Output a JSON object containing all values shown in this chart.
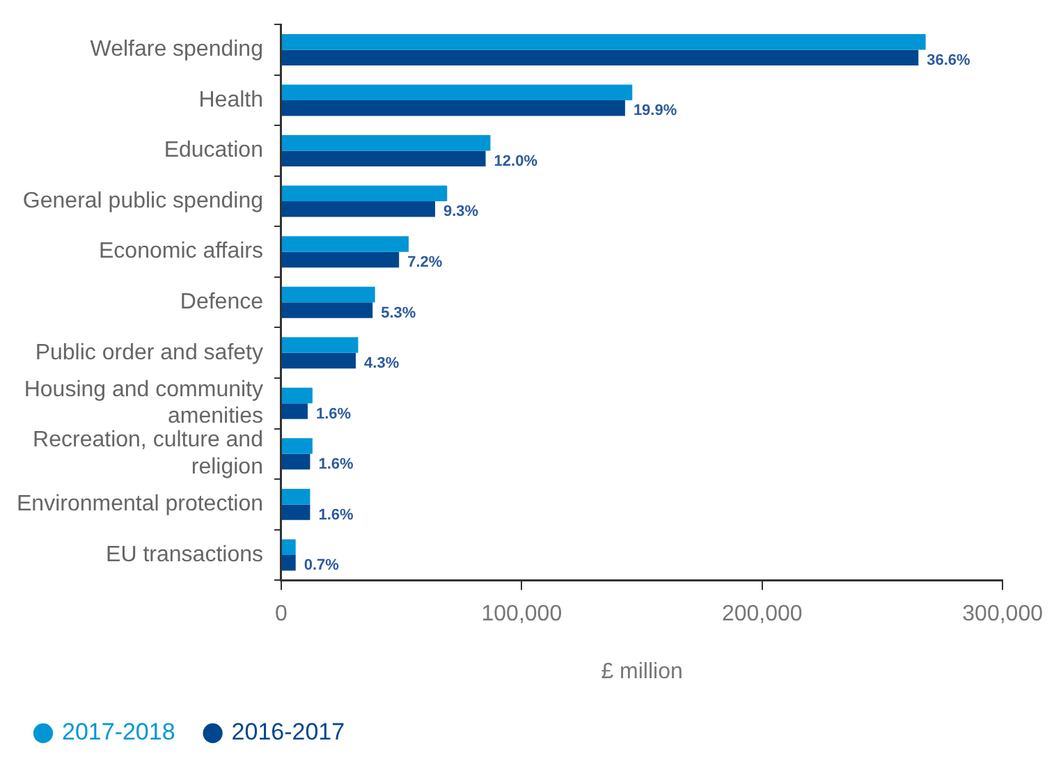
{
  "chart_data": {
    "type": "bar",
    "orientation": "horizontal",
    "categories": [
      "Welfare spending",
      "Health",
      "Education",
      "General public spending",
      "Economic affairs",
      "Defence",
      "Public order and safety",
      "Housing and community amenities",
      "Recreation, culture and religion",
      "Environmental protection",
      "EU transactions"
    ],
    "series": [
      {
        "name": "2017-2018",
        "color": "#0096d6",
        "values": [
          268000,
          146000,
          87000,
          69000,
          53000,
          39000,
          32000,
          13000,
          13000,
          12000,
          6000
        ]
      },
      {
        "name": "2016-2017",
        "color": "#00468e",
        "values": [
          265000,
          143000,
          85000,
          64000,
          49000,
          38000,
          31000,
          11000,
          12000,
          12000,
          6000
        ]
      }
    ],
    "annotations": [
      {
        "text": "36.6%",
        "x": 265000,
        "y": "Welfare spending"
      },
      {
        "text": "19.9%",
        "x": 143000,
        "y": "Health"
      },
      {
        "text": "12.0%",
        "x": 85000,
        "y": "Education"
      },
      {
        "text": "9.3%",
        "x": 64000,
        "y": "General public spending"
      },
      {
        "text": "7.2%",
        "x": 49000,
        "y": "Economic affairs"
      },
      {
        "text": "5.3%",
        "x": 38000,
        "y": "Defence"
      },
      {
        "text": "4.3%",
        "x": 31000,
        "y": "Public order and safety"
      },
      {
        "text": "1.6%",
        "x": 11000,
        "y": "Housing and community amenities"
      },
      {
        "text": "1.6%",
        "x": 12000,
        "y": "Recreation, culture and religion"
      },
      {
        "text": "1.6%",
        "x": 12000,
        "y": "Environmental protection"
      },
      {
        "text": "0.7%",
        "x": 6000,
        "y": "EU transactions"
      }
    ],
    "xlabel": "£ million",
    "xlim": [
      0,
      300000
    ],
    "xticks": [
      {
        "value": 0,
        "label": "0"
      },
      {
        "value": 100000,
        "label": "100,000"
      },
      {
        "value": 200000,
        "label": "200,000"
      },
      {
        "value": 300000,
        "label": "300,000"
      }
    ],
    "grid": false,
    "legend": "bottom left"
  }
}
